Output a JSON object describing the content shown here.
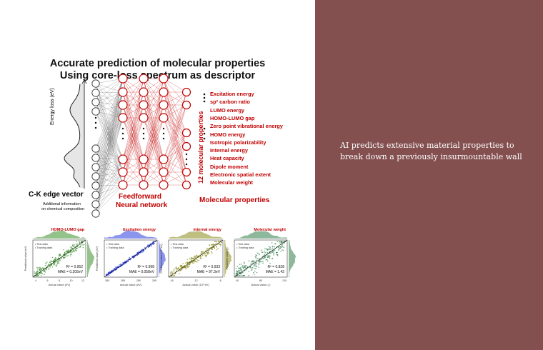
{
  "figure": {
    "title_line1": "Accurate prediction of molecular properties",
    "title_line2": "Using core-loss spectrum as descriptor",
    "energy_axis_label": "Energy loss (eV)",
    "edge_vector_label": "C-K edge vector",
    "additional_info_line1": "Additional information",
    "additional_info_line2": "on chemical composition",
    "network_label_line1": "Feedforward",
    "network_label_line2": "Neural network",
    "vertical_label": "12 molecular properties",
    "outputs_label": "Molecular properties",
    "properties": [
      "Excitation energy",
      "sp² carbon ratio",
      "LUMO energy",
      "HOMO-LUMO gap",
      "Zero point vibrational energy",
      "HOMO energy",
      "Isotropic polarizability",
      "Internal energy",
      "Heat capacity",
      "Dipole moment",
      "Electronic spatial extent",
      "Molecular weight"
    ],
    "colors": {
      "red": "#c00000",
      "dark": "#111111",
      "green": "#3a8f2a",
      "blue": "#2b3ee0",
      "olive": "#8a8a1a",
      "darkgreen": "#2f7d4a"
    }
  },
  "panels": [
    {
      "title": "HOMO-LUMO gap",
      "legend_test": "Test data",
      "legend_train": "Training data",
      "r2": "R² = 0.952",
      "mae": "MAE = 0.205eV",
      "xlabel": "Actual value (eV)",
      "ylabel": "Predicted value (eV)",
      "ticks": [
        "4",
        "6",
        "8",
        "10",
        "12"
      ],
      "color": "#3a8f2a"
    },
    {
      "title": "Excitation energy",
      "legend_test": "Test data",
      "legend_train": "Training data",
      "r2": "R² = 0.998",
      "mae": "MAE = 0.058eV",
      "xlabel": "Actual value (eV)",
      "ylabel": "Predicted value (eV)",
      "ticks": [
        "280",
        "285",
        "290",
        "295"
      ],
      "color": "#2b3ee0"
    },
    {
      "title": "Internal energy",
      "legend_test": "Test data",
      "legend_train": "Training data",
      "r2": "R² = 0.933",
      "mae": "MAE = 97.3eV",
      "xlabel": "Actual value (10³ eV)",
      "ylabel": "Predicted value (10³ eV)",
      "ticks": [
        "-16",
        "-12",
        "-8"
      ],
      "color": "#8a8a1a"
    },
    {
      "title": "Molecular weight",
      "legend_test": "Test data",
      "legend_train": "Training data",
      "r2": "R² = 0.828",
      "mae": "MAE = 1.42",
      "xlabel": "Actual value (-)",
      "ylabel": "Predicted value (-)",
      "ticks": [
        "40",
        "80",
        "120"
      ],
      "color": "#2f7d4a"
    }
  ],
  "caption": {
    "text": "AI predicts extensive material properties to break down a previously insurmountable wall"
  }
}
